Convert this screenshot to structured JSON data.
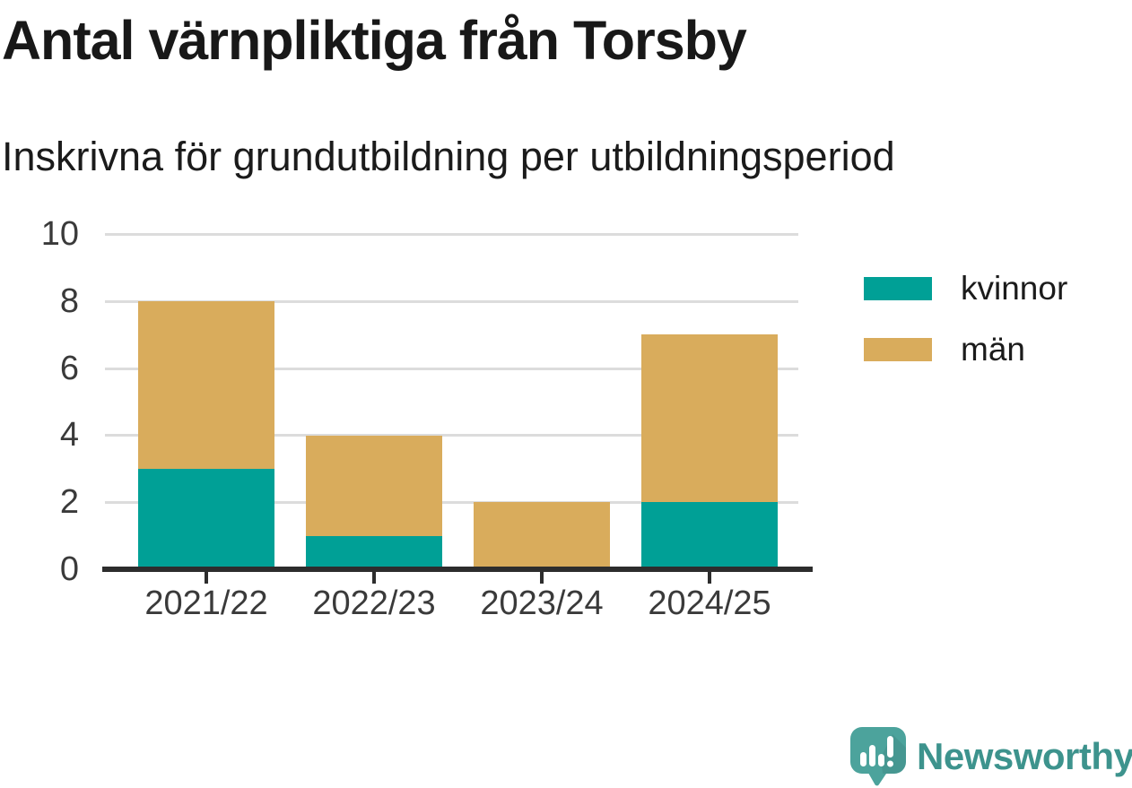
{
  "title": "Antal värnpliktiga från Torsby",
  "subtitle": "Inskrivna för grundutbildning per utbildningsperiod",
  "chart_data": {
    "type": "bar",
    "stacked": true,
    "title": "Antal värnpliktiga från Torsby",
    "subtitle": "Inskrivna för grundutbildning per utbildningsperiod",
    "categories": [
      "2021/22",
      "2022/23",
      "2023/24",
      "2024/25"
    ],
    "series": [
      {
        "name": "kvinnor",
        "color": "#00a096",
        "values": [
          3,
          1,
          0,
          2
        ]
      },
      {
        "name": "män",
        "color": "#d9ac5c",
        "values": [
          5,
          3,
          2,
          5
        ]
      }
    ],
    "totals": [
      8,
      4,
      2,
      7
    ],
    "xlabel": "",
    "ylabel": "",
    "ylim": [
      0,
      10
    ],
    "yticks": [
      0,
      2,
      4,
      6,
      8,
      10
    ],
    "grid": true,
    "legend_position": "right",
    "gridline_color": "#dcdcdc",
    "axis_color": "#2d2d2d",
    "tick_label_color": "#3a3a3a"
  },
  "branding": {
    "logo_text": "Newsworthy",
    "logo_icon": "newsworthy-speech-bubble-chart-icon",
    "logo_text_color": "#3d938d",
    "logo_icon_color": "#4ca39c"
  }
}
